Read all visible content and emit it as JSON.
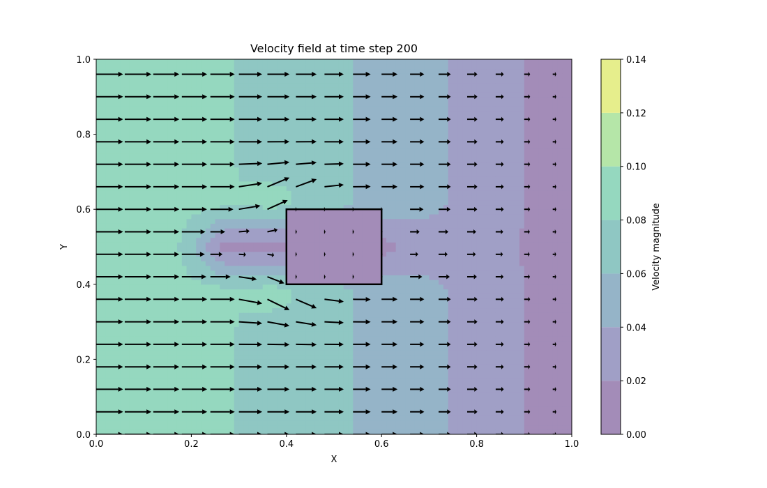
{
  "chart_data": {
    "type": "quiver-contour",
    "title": "Velocity field at time step 200",
    "xlabel": "X",
    "ylabel": "Y",
    "xlim": [
      0.0,
      1.0
    ],
    "ylim": [
      0.0,
      1.0
    ],
    "x_ticks": [
      "0.0",
      "0.2",
      "0.4",
      "0.6",
      "0.8",
      "1.0"
    ],
    "y_ticks": [
      "0.0",
      "0.2",
      "0.4",
      "0.6",
      "0.8",
      "1.0"
    ],
    "colorbar": {
      "label": "Velocity magnitude",
      "ticks": [
        "0.00",
        "0.02",
        "0.04",
        "0.06",
        "0.08",
        "0.10",
        "0.12",
        "0.14"
      ],
      "levels": [
        0.0,
        0.02,
        0.04,
        0.06,
        0.08,
        0.1,
        0.12,
        0.14
      ],
      "colors": [
        "#a38cb8",
        "#a09fc6",
        "#95b4c8",
        "#8fc7c3",
        "#95d8bf",
        "#b5e6a8",
        "#e6ee8c"
      ]
    },
    "obstacle": {
      "x": [
        0.4,
        0.6
      ],
      "y": [
        0.4,
        0.6
      ]
    },
    "quiver_grid": {
      "x_start": 0.0,
      "x_step": 0.06,
      "x_count": 17,
      "y_start": 0.0,
      "y_step": 0.06,
      "y_count": 17
    },
    "grid": false,
    "legend": "none"
  }
}
